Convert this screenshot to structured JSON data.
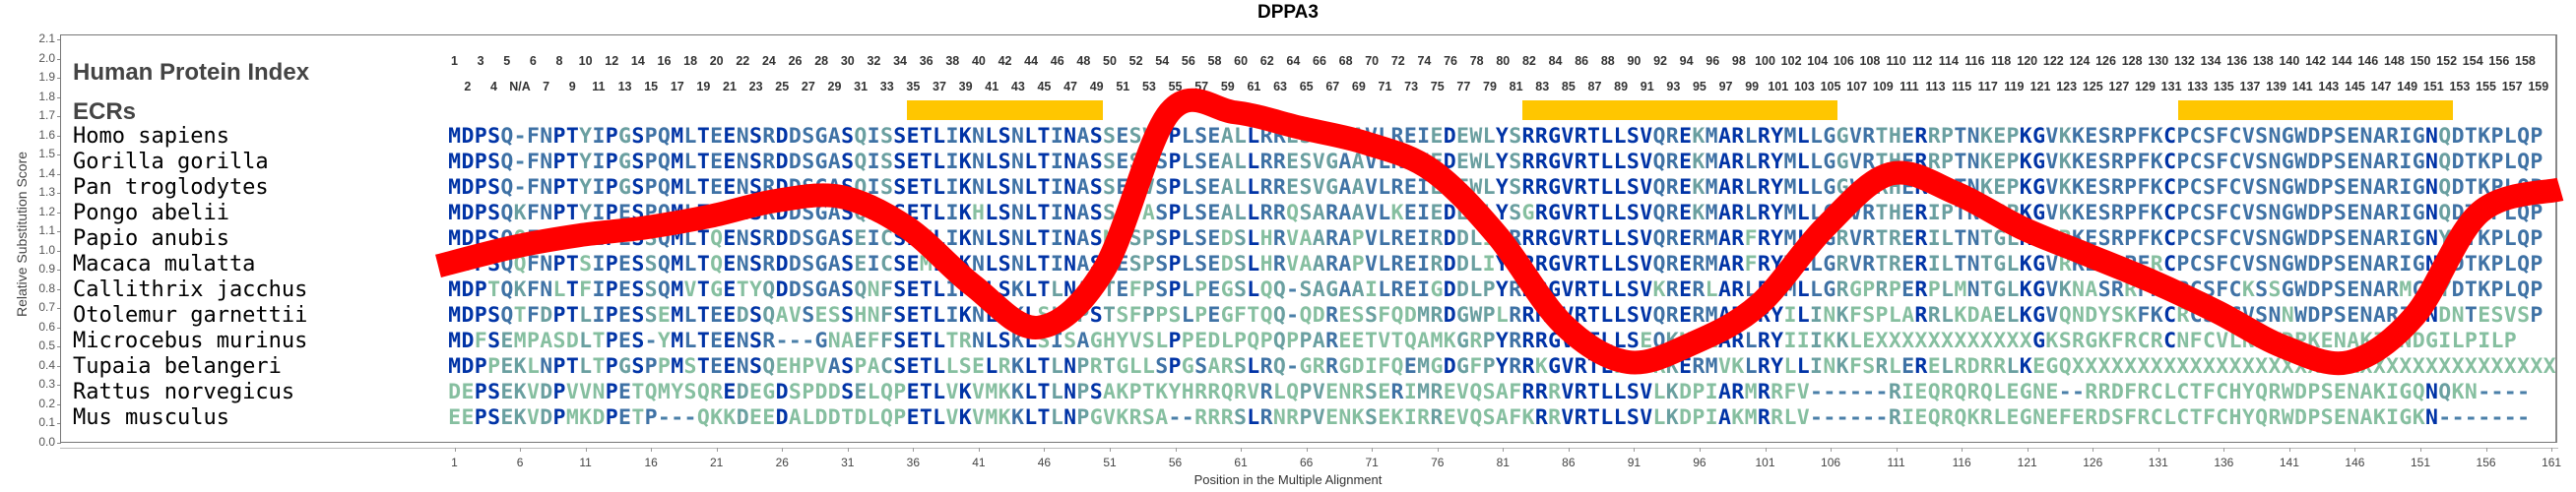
{
  "chart_data": {
    "type": "line",
    "title": "DPPA3",
    "xlabel": "Position in the Multiple Alignment",
    "ylabel": "Relative Substitution Score",
    "ylim": [
      0.0,
      2.1
    ],
    "xlim": [
      1,
      161
    ],
    "yticks": [
      "0.0",
      "0.1",
      "0.2",
      "0.3",
      "0.4",
      "0.5",
      "0.6",
      "0.7",
      "0.8",
      "0.9",
      "1.0",
      "1.1",
      "1.2",
      "1.3",
      "1.4",
      "1.5",
      "1.6",
      "1.7",
      "1.8",
      "1.9",
      "2.0",
      "2.1"
    ],
    "xticks": [
      "1",
      "6",
      "11",
      "16",
      "21",
      "26",
      "31",
      "36",
      "41",
      "46",
      "51",
      "56",
      "61",
      "66",
      "71",
      "76",
      "81",
      "86",
      "91",
      "96",
      "101",
      "106",
      "111",
      "116",
      "121",
      "126",
      "131",
      "136",
      "141",
      "146",
      "151",
      "156",
      "161"
    ],
    "grid": false,
    "series": [
      {
        "name": "Relative Substitution Score",
        "color": "#ff0000",
        "x": [
          1,
          6,
          11,
          16,
          21,
          26,
          31,
          36,
          41,
          46,
          51,
          56,
          61,
          66,
          71,
          76,
          81,
          86,
          91,
          96,
          101,
          106,
          111,
          116,
          121,
          126,
          131,
          136,
          141,
          146,
          151,
          156,
          161
        ],
        "values": [
          0.92,
          1.02,
          1.08,
          1.12,
          1.18,
          1.26,
          1.28,
          1.12,
          0.82,
          0.6,
          0.9,
          1.72,
          1.72,
          1.64,
          1.56,
          1.42,
          1.08,
          0.62,
          0.42,
          0.52,
          0.72,
          1.12,
          1.4,
          1.3,
          1.12,
          0.98,
          0.84,
          0.68,
          0.5,
          0.42,
          0.66,
          1.2,
          1.32
        ]
      }
    ],
    "human_protein_index": {
      "label": "Human Protein Index",
      "top_row": [
        "1",
        "3",
        "5",
        "6",
        "8",
        "10",
        "12",
        "14",
        "16",
        "18",
        "20",
        "22",
        "24",
        "26",
        "28",
        "30",
        "32",
        "34",
        "36",
        "38",
        "40",
        "42",
        "44",
        "46",
        "48",
        "50",
        "52",
        "54",
        "56",
        "58",
        "60",
        "62",
        "64",
        "66",
        "68",
        "70",
        "72",
        "74",
        "76",
        "78",
        "80",
        "82",
        "84",
        "86",
        "88",
        "90",
        "92",
        "94",
        "96",
        "98",
        "100",
        "102",
        "104",
        "106",
        "108",
        "110",
        "112",
        "114",
        "116",
        "118",
        "120",
        "122",
        "124",
        "126",
        "128",
        "130",
        "132",
        "134",
        "136",
        "138",
        "140",
        "142",
        "144",
        "146",
        "148",
        "150",
        "152",
        "154",
        "156",
        "158"
      ],
      "bottom_row": [
        "2",
        "4",
        "N/A",
        "7",
        "9",
        "11",
        "13",
        "15",
        "17",
        "19",
        "21",
        "23",
        "25",
        "27",
        "29",
        "31",
        "33",
        "35",
        "37",
        "39",
        "41",
        "43",
        "45",
        "47",
        "49",
        "51",
        "53",
        "55",
        "57",
        "59",
        "61",
        "63",
        "65",
        "67",
        "69",
        "71",
        "73",
        "75",
        "77",
        "79",
        "81",
        "83",
        "85",
        "87",
        "89",
        "91",
        "93",
        "95",
        "97",
        "99",
        "101",
        "103",
        "105",
        "107",
        "109",
        "111",
        "113",
        "115",
        "117",
        "119",
        "121",
        "123",
        "125",
        "127",
        "129",
        "131",
        "133",
        "135",
        "137",
        "139",
        "141",
        "143",
        "145",
        "147",
        "149",
        "151",
        "153",
        "155",
        "157",
        "159"
      ]
    },
    "ecrs": {
      "label": "ECRs",
      "color": "#ffc600",
      "regions": [
        {
          "start_col": 36,
          "end_col": 50
        },
        {
          "start_col": 83,
          "end_col": 106
        },
        {
          "start_col": 133,
          "end_col": 153
        }
      ]
    },
    "alignment": [
      {
        "species": "Homo sapiens",
        "sequence": "MDPSQ-FNPTYIPGSPQMLTEENSRDDSGASQISSETLIKNLSNLTINASSESVSPLSEALLRRESVGAAVLREIEDEWLYSRRGVRTLLSVQREKMARLRYMLLGGVRTHERRPTNKEPKGVKKESRPFKCPCSFCVSNGWDPSENARIGNQDTKPLQP"
      },
      {
        "species": "Gorilla gorilla",
        "sequence": "MDPSQ-FNPTYIPGSPQMLTEENSRDDSGASQISSETLIKNLSNLTINASSESVSPLSEALLRRESVGAAVLREIEDEWLYSRRGVRTLLSVQREKMARLRYMLLGGVRTHERRPTNKEPKGVKKESRPFKCPCSFCVSNGWDPSENARIGNQDTKPLQP"
      },
      {
        "species": "Pan troglodytes",
        "sequence": "MDPSQ-FNPTYIPGSPQMLTEENSRDDSGASQISSETLIKNLSNLTINASSESVSPLSEALLRRESVGAAVLREIEDEWLYSRRGVRTLLSVQREKMARLRYMLLGGVRRHERRPTNKEPKGVKKESRPFKCPCSFCVSNGWDPSENARIGNQDTKPLQP"
      },
      {
        "species": "Pongo abelii",
        "sequence": "MDPSQKFNPTYIPESPQMLTEENSRDDSGASQICSETLIKHLSNLTINASSQTASPLSEALLRRQSARAAVLKEIEDEWLYSGRGVRTLLSVQREKMARLRYMLLGRVRTHERIPTNKGPKGVKKESRPFKCPCSFCVSNGWDPSENARIGNQDTKPLQP"
      },
      {
        "species": "Papio anubis",
        "sequence": "MDPSQQFNPTSIPESSQMLTQENSRDDSGASEICSEMLIKNLSNLTINASNESPSPLSEDSLHRVAARAPVLREIRDDLIYRRRGVRTLLSVQRERMARFRYMLLGRVRTRERILTNTGLKGVRKESRPFKCPCSFCVSNGWDPSENARIGNYDTKPLQP"
      },
      {
        "species": "Macaca mulatta",
        "sequence": "MDPSQQFNPTSIPESSQMLTQENSRDDSGASEICSEMLIKNLSNLTINASNESPSPLSEDSLHRVAARAPVLREIRDDLIYRRRGVRTLLSVQRERMARFRYMLLGRVRTRERILTNTGLKGVRKESRPFRCPCSFCVSNGWDPSENARIGNYDTKPLQP"
      },
      {
        "species": "Callithrix jacchus",
        "sequence": "MDPTQKFNLTFIPESSQMVTGETYQDDSGASQNFSETLIKNLSKLTLNASTEFPSPLPEGSLQQ-SAGAAILREIGDDLPYRRRGVRTLLSVKRERLARLRYMLLGRGPRPERPLMNTGLKGVKNASRRFKCPCSFCKSSGWDPSENARMGNYDTKPLQP"
      },
      {
        "species": "Otolemur garnettii",
        "sequence": "MDPSQTFDPTLIPESSEMLTEEDSQAVSESSHNFSETLIKNLSKLSLNPSTSFPPSLPEGFTQQ-QDRESSFQDMRDGWPLRRRGVRTLLSVQRERMARLRYILINKFSPLARRLKDAELKGVQNDYSKFKCRCSYCVSNNWDPSENARIGNDNTESVSP"
      },
      {
        "species": "Microcebus murinus",
        "sequence": "MDFSEMPASDLTPES-YMLTEENSR---GNAEFFSETLTRNLSKLSISAGHYVSLPPEDLPQPQPPAREETVTQAMKGRPYRRRGVRTLLSEQKNRLARLRYIIIKKLEXXXXXXXXXXXXGKSRGKFRCRCNFCVLNKWDPKENAKIGNDGILPILP"
      },
      {
        "species": "Tupaia belangeri",
        "sequence": "MDPPEKLNPTLTPGSPPMSTEENSQEHPVASPACSETLLSELRKLTLNPRTGLLSPGSARSLRQ-GRRGDIFQEMGDGFPYRRKGVRTLFSVRKERMVKLRYLLINKFSRLERELRDRRLKEGQXXXXXXXXXXXXXXXXXXXXXXXXXXXXXXXXXXXXX"
      },
      {
        "species": "Rattus norvegicus",
        "sequence": "DEPSEKVDPVVNPETQMYSQREDEGDSPDDSELQPETLVKVMKKLTLNPSAKPTKYHRRQRVRLQPVENRSERIMREVQSAFRRRVRTLLSVLKDPIARMRRFV------RIEQRQRQLEGNE--RRDFRCLCTFCHYQRWDPSENAKIGQNQKN----"
      },
      {
        "species": "Mus musculus",
        "sequence": "EEPSEKVDPMKDPETP---QKKDEEDALDDTDLQPETLVKVMKKLTLNPGVKRSA--RRRSLRNRPVENKSEKIRREVQSAFKRRVRTLLSVLKDPIAKMRRLV------RIEQRQKRLEGNEFERDSFRCLCTFCHYQRWDPSENAKIGKN-------"
      }
    ],
    "residue_colors": {
      "high_conservation": "#0033a6",
      "medium_conservation": "#3f72a5",
      "low_conservation": "#6a9fa0",
      "lowest_conservation": "#86bfa0",
      "gap": "#4a7fa8"
    }
  }
}
